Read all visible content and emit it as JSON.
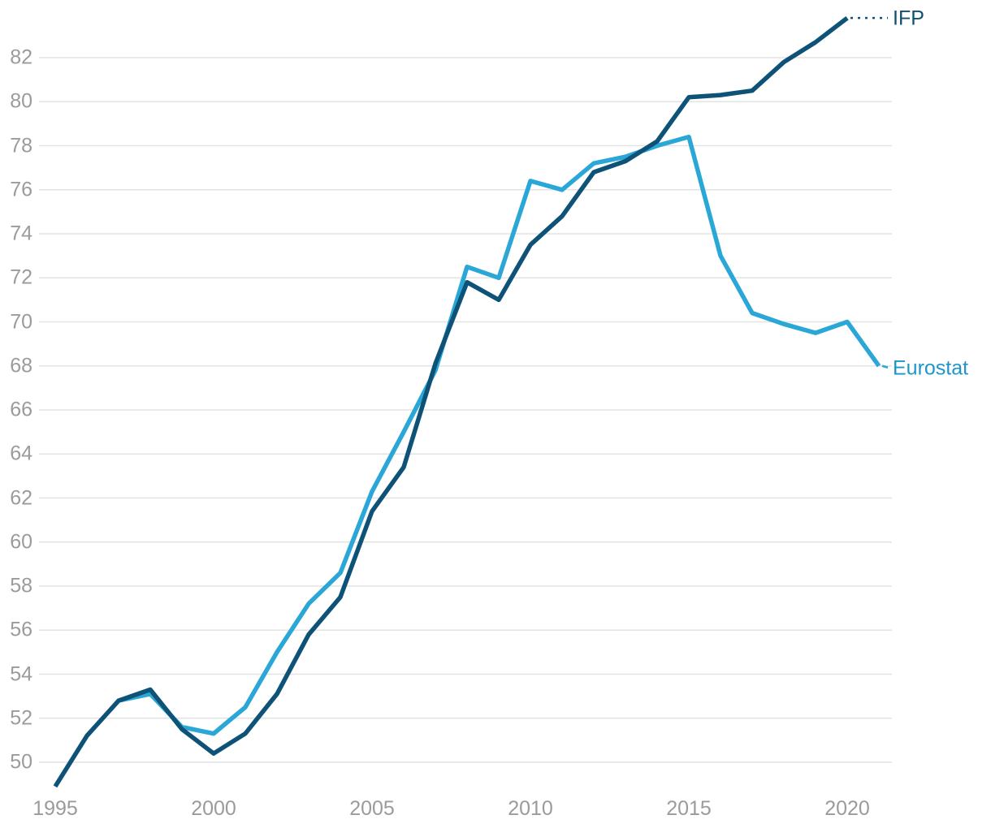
{
  "chart_data": {
    "type": "line",
    "title": "",
    "xlabel": "",
    "ylabel": "",
    "grid": "horizontal",
    "grid_color": "#e3e3e3",
    "tick_label_color": "#9b9b9b",
    "background_color": "#ffffff",
    "xlim": [
      1995,
      2021
    ],
    "ylim": [
      48.5,
      84.2
    ],
    "xticks": [
      "1995",
      "2000",
      "2005",
      "2010",
      "2015",
      "2020"
    ],
    "xtick_years": [
      1995,
      2000,
      2005,
      2010,
      2015,
      2020
    ],
    "yticks": [
      "50",
      "52",
      "54",
      "56",
      "58",
      "60",
      "62",
      "64",
      "66",
      "68",
      "70",
      "72",
      "74",
      "76",
      "78",
      "80",
      "82"
    ],
    "ytick_values": [
      50,
      52,
      54,
      56,
      58,
      60,
      62,
      64,
      66,
      68,
      70,
      72,
      74,
      76,
      78,
      80,
      82
    ],
    "legend_position": "end-of-line-labels-right",
    "x": [
      1995,
      1996,
      1997,
      1998,
      1999,
      2000,
      2001,
      2002,
      2003,
      2004,
      2005,
      2006,
      2007,
      2008,
      2009,
      2010,
      2011,
      2012,
      2013,
      2014,
      2015,
      2016,
      2017,
      2018,
      2019,
      2020,
      2021
    ],
    "series": [
      {
        "name": "Eurostat",
        "color": "#2aa7d6",
        "label_color": "#1e96c8",
        "leader_style": "solid",
        "values": [
          null,
          null,
          52.8,
          53.1,
          51.6,
          51.3,
          52.5,
          55.0,
          57.2,
          58.6,
          62.3,
          65.0,
          67.8,
          72.5,
          72.0,
          76.4,
          76.0,
          77.2,
          77.5,
          78.0,
          78.4,
          73.0,
          70.4,
          69.9,
          69.5,
          70.0,
          68.0
        ]
      },
      {
        "name": "IFP",
        "color": "#0e5377",
        "label_color": "#0f5170",
        "leader_style": "dotted",
        "values": [
          48.9,
          51.2,
          52.8,
          53.3,
          51.5,
          50.4,
          51.3,
          53.1,
          55.8,
          57.5,
          61.4,
          63.4,
          68.1,
          71.8,
          71.0,
          73.5,
          74.8,
          76.8,
          77.3,
          78.2,
          80.2,
          80.3,
          80.5,
          81.8,
          82.7,
          83.8,
          null
        ]
      }
    ]
  }
}
